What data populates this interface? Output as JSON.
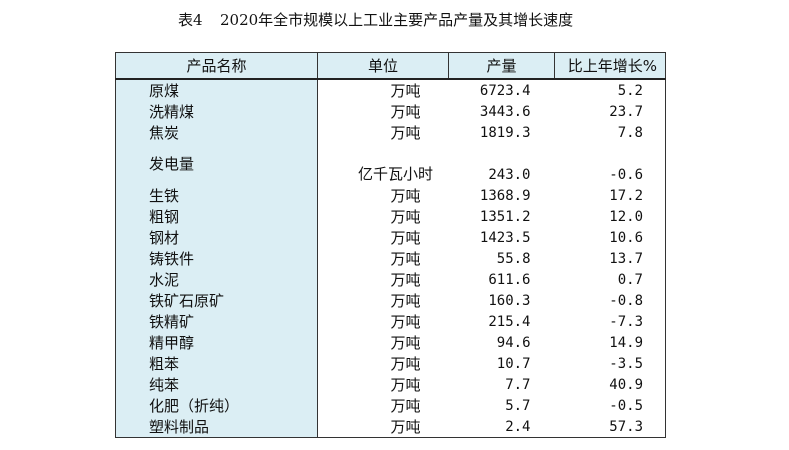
{
  "title": {
    "table_no": "表4",
    "text": "2020年全市规模以上工业主要产品产量及其增长速度"
  },
  "headers": [
    "产品名称",
    "单位",
    "产量",
    "比上年增长%"
  ],
  "rows": [
    {
      "name": "原煤",
      "unit": "万吨",
      "output": "6723.4",
      "growth": "5.2"
    },
    {
      "name": "洗精煤",
      "unit": "万吨",
      "output": "3443.6",
      "growth": "23.7"
    },
    {
      "name": "焦炭",
      "unit": "万吨",
      "output": "1819.3",
      "growth": "7.8"
    },
    {
      "name": "发电量",
      "unit": "亿千瓦小时",
      "output": "243.0",
      "growth": "-0.6"
    },
    {
      "name": "生铁",
      "unit": "万吨",
      "output": "1368.9",
      "growth": "17.2"
    },
    {
      "name": "粗钢",
      "unit": "万吨",
      "output": "1351.2",
      "growth": "12.0"
    },
    {
      "name": "钢材",
      "unit": "万吨",
      "output": "1423.5",
      "growth": "10.6"
    },
    {
      "name": "铸铁件",
      "unit": "万吨",
      "output": "55.8",
      "growth": "13.7"
    },
    {
      "name": "水泥",
      "unit": "万吨",
      "output": "611.6",
      "growth": "0.7"
    },
    {
      "name": "铁矿石原矿",
      "unit": "万吨",
      "output": "160.3",
      "growth": "-0.8"
    },
    {
      "name": "铁精矿",
      "unit": "万吨",
      "output": "215.4",
      "growth": "-7.3"
    },
    {
      "name": "精甲醇",
      "unit": "万吨",
      "output": "94.6",
      "growth": "14.9"
    },
    {
      "name": "粗苯",
      "unit": "万吨",
      "output": "10.7",
      "growth": "-3.5"
    },
    {
      "name": "纯苯",
      "unit": "万吨",
      "output": "7.7",
      "growth": "40.9"
    },
    {
      "name": "化肥（折纯）",
      "unit": "万吨",
      "output": "5.7",
      "growth": "-0.5"
    },
    {
      "name": "塑料制品",
      "unit": "万吨",
      "output": "2.4",
      "growth": "57.3"
    }
  ]
}
